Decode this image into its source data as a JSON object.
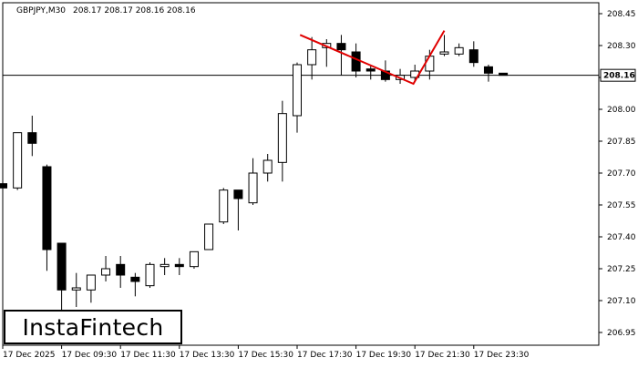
{
  "header": {
    "symbol": "GBPJPY,M30",
    "ohlc": "208.17 208.17 208.16 208.16"
  },
  "logo": {
    "text": "InstaFintech"
  },
  "chart_data": {
    "type": "candlestick",
    "symbol": "GBPJPY",
    "timeframe": "M30",
    "ylim": [
      206.9,
      208.5
    ],
    "y_ticks": [
      "208.45",
      "208.30",
      "208.15",
      "208.00",
      "207.85",
      "207.70",
      "207.55",
      "207.40",
      "207.25",
      "207.10",
      "206.95"
    ],
    "x_ticks": [
      "17 Dec 2025",
      "17 Dec 09:30",
      "17 Dec 11:30",
      "17 Dec 13:30",
      "17 Dec 15:30",
      "17 Dec 17:30",
      "17 Dec 19:30",
      "17 Dec 21:30",
      "17 Dec 23:30"
    ],
    "current_price": "208.16",
    "current_price_value": 208.16,
    "candles": [
      {
        "o": 207.65,
        "h": 207.7,
        "l": 207.5,
        "c": 207.63
      },
      {
        "o": 207.63,
        "h": 207.89,
        "l": 207.62,
        "c": 207.89
      },
      {
        "o": 207.89,
        "h": 207.97,
        "l": 207.78,
        "c": 207.84
      },
      {
        "o": 207.73,
        "h": 207.74,
        "l": 207.24,
        "c": 207.34
      },
      {
        "o": 207.37,
        "h": 207.37,
        "l": 207.02,
        "c": 207.15
      },
      {
        "o": 207.15,
        "h": 207.23,
        "l": 207.07,
        "c": 207.16
      },
      {
        "o": 207.15,
        "h": 207.22,
        "l": 207.09,
        "c": 207.22
      },
      {
        "o": 207.22,
        "h": 207.31,
        "l": 207.19,
        "c": 207.25
      },
      {
        "o": 207.27,
        "h": 207.31,
        "l": 207.16,
        "c": 207.22
      },
      {
        "o": 207.21,
        "h": 207.23,
        "l": 207.12,
        "c": 207.19
      },
      {
        "o": 207.17,
        "h": 207.28,
        "l": 207.16,
        "c": 207.27
      },
      {
        "o": 207.26,
        "h": 207.3,
        "l": 207.22,
        "c": 207.27
      },
      {
        "o": 207.27,
        "h": 207.3,
        "l": 207.22,
        "c": 207.26
      },
      {
        "o": 207.26,
        "h": 207.33,
        "l": 207.25,
        "c": 207.33
      },
      {
        "o": 207.34,
        "h": 207.46,
        "l": 207.34,
        "c": 207.46
      },
      {
        "o": 207.47,
        "h": 207.63,
        "l": 207.46,
        "c": 207.62
      },
      {
        "o": 207.62,
        "h": 207.62,
        "l": 207.43,
        "c": 207.58
      },
      {
        "o": 207.56,
        "h": 207.77,
        "l": 207.55,
        "c": 207.7
      },
      {
        "o": 207.7,
        "h": 207.79,
        "l": 207.66,
        "c": 207.76
      },
      {
        "o": 207.75,
        "h": 208.04,
        "l": 207.66,
        "c": 207.98
      },
      {
        "o": 207.97,
        "h": 208.22,
        "l": 207.89,
        "c": 208.21
      },
      {
        "o": 208.21,
        "h": 208.34,
        "l": 208.14,
        "c": 208.28
      },
      {
        "o": 208.29,
        "h": 208.33,
        "l": 208.2,
        "c": 208.31
      },
      {
        "o": 208.31,
        "h": 208.35,
        "l": 208.16,
        "c": 208.28
      },
      {
        "o": 208.27,
        "h": 208.31,
        "l": 208.15,
        "c": 208.18
      },
      {
        "o": 208.19,
        "h": 208.21,
        "l": 208.14,
        "c": 208.18
      },
      {
        "o": 208.18,
        "h": 208.23,
        "l": 208.13,
        "c": 208.14
      },
      {
        "o": 208.14,
        "h": 208.19,
        "l": 208.12,
        "c": 208.16
      },
      {
        "o": 208.15,
        "h": 208.21,
        "l": 208.13,
        "c": 208.18
      },
      {
        "o": 208.18,
        "h": 208.28,
        "l": 208.14,
        "c": 208.25
      },
      {
        "o": 208.26,
        "h": 208.35,
        "l": 208.25,
        "c": 208.27
      },
      {
        "o": 208.26,
        "h": 208.31,
        "l": 208.25,
        "c": 208.29
      },
      {
        "o": 208.28,
        "h": 208.32,
        "l": 208.2,
        "c": 208.22
      },
      {
        "o": 208.2,
        "h": 208.21,
        "l": 208.13,
        "c": 208.17
      },
      {
        "o": 208.17,
        "h": 208.17,
        "l": 208.16,
        "c": 208.16
      }
    ],
    "pattern": {
      "name": "double top",
      "color": "#e00000",
      "points": [
        {
          "candle": 20.2,
          "price": 208.35
        },
        {
          "candle": 27.9,
          "price": 208.12
        },
        {
          "candle": 30.0,
          "price": 208.37
        }
      ]
    },
    "colors": {
      "bullish_body": "#ffffff",
      "bearish_body": "#000000",
      "outline": "#000000",
      "price_line": "#000000"
    },
    "grid": false
  }
}
